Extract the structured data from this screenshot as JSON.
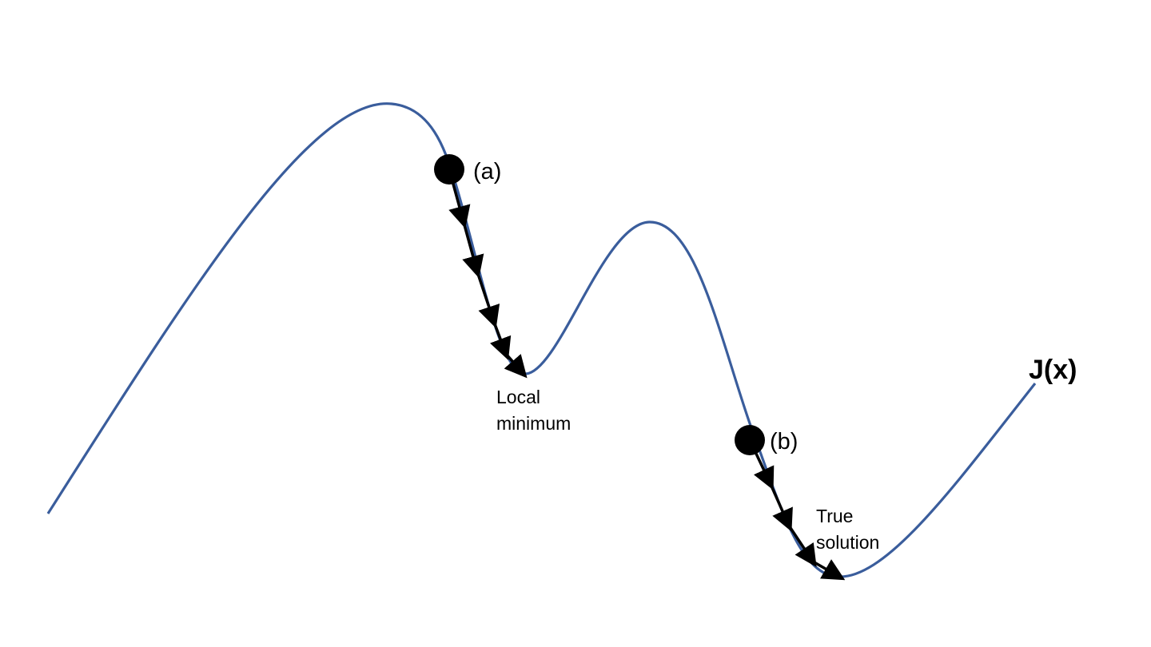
{
  "diagram": {
    "function_label": "J(x)",
    "start_points": [
      {
        "id": "a",
        "label": "(a)"
      },
      {
        "id": "b",
        "label": "(b)"
      }
    ],
    "annotations": {
      "local_minimum": [
        "Local",
        "minimum"
      ],
      "true_solution": [
        "True",
        "solution"
      ]
    },
    "colors": {
      "curve": "#3a5d9c",
      "path": "#000000",
      "point": "#000000",
      "background": "#ffffff"
    }
  }
}
